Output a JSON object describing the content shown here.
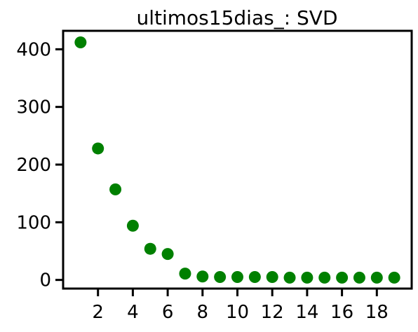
{
  "chart_data": {
    "type": "scatter",
    "title": "ultimos15dias_: SVD",
    "xlabel": "",
    "ylabel": "",
    "x": [
      1,
      2,
      3,
      4,
      5,
      6,
      7,
      8,
      9,
      10,
      11,
      12,
      13,
      14,
      15,
      16,
      17,
      18,
      19
    ],
    "y": [
      412,
      228,
      157,
      94,
      54,
      45,
      11,
      6,
      5,
      5,
      5,
      5,
      4,
      4,
      4,
      4,
      4,
      4,
      4
    ],
    "xlim": [
      0,
      20
    ],
    "ylim": [
      -15,
      432
    ],
    "xticks": [
      2,
      4,
      6,
      8,
      10,
      12,
      14,
      16,
      18
    ],
    "yticks": [
      0,
      100,
      200,
      300,
      400
    ],
    "grid": false,
    "marker_color": "#008000"
  }
}
